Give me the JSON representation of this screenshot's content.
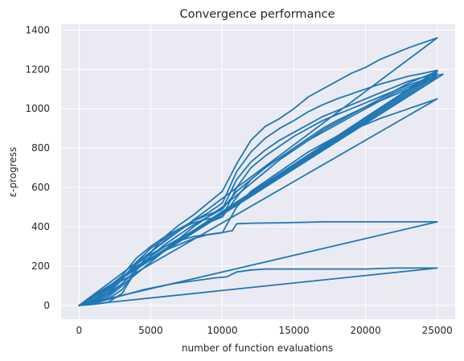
{
  "chart_data": {
    "type": "line",
    "title": "Convergence performance",
    "xlabel": "number of function evaluations",
    "ylabel": "ε-progress",
    "xlim": [
      -1250,
      26250
    ],
    "ylim": [
      -70,
      1430
    ],
    "xticks": [
      0,
      5000,
      10000,
      15000,
      20000,
      25000
    ],
    "yticks": [
      0,
      200,
      400,
      600,
      800,
      1000,
      1200,
      1400
    ],
    "grid": true,
    "legend": "none",
    "colors": {
      "series": "#1f77b4",
      "plot_background": "#eaeaf2",
      "grid": "#ffffff"
    },
    "series": [
      {
        "x": [
          0,
          1000,
          2000,
          3000,
          4000,
          5000,
          6000,
          7000,
          8000,
          9000,
          10000,
          11000,
          12000,
          13000,
          14000,
          15000,
          16000,
          17000,
          18000,
          19000,
          20000,
          21000,
          22000,
          23000,
          24000,
          25000,
          0
        ],
        "y": [
          0,
          5,
          15,
          60,
          180,
          270,
          350,
          410,
          460,
          520,
          580,
          720,
          840,
          910,
          950,
          1000,
          1060,
          1100,
          1140,
          1180,
          1210,
          1250,
          1280,
          1310,
          1335,
          1360,
          0
        ]
      },
      {
        "x": [
          0,
          500,
          1000,
          2000,
          3500,
          4500,
          5500,
          6500,
          7500,
          8500,
          9500,
          10300,
          11000,
          12000,
          13000,
          14000,
          16000,
          17000,
          20000,
          22000,
          25000,
          0
        ],
        "y": [
          0,
          10,
          10,
          30,
          60,
          80,
          95,
          110,
          120,
          130,
          140,
          145,
          170,
          180,
          185,
          185,
          185,
          185,
          185,
          190,
          190,
          0
        ]
      },
      {
        "x": [
          0,
          1000,
          2000,
          3000,
          4000,
          5000,
          6000,
          7000,
          8000,
          9000,
          10000,
          10700,
          11000,
          12000,
          14000,
          16000,
          17000,
          20000,
          23000,
          25000,
          0
        ],
        "y": [
          0,
          30,
          60,
          110,
          180,
          250,
          300,
          330,
          350,
          360,
          370,
          380,
          415,
          418,
          420,
          423,
          425,
          425,
          425,
          425,
          0
        ]
      },
      {
        "x": [
          0,
          1000,
          2000,
          3000,
          4000,
          5000,
          6000,
          7000,
          8000,
          9000,
          10000,
          11000,
          12000,
          13000,
          14000,
          15000,
          16000,
          17000,
          18000,
          19000,
          20000,
          21000,
          22000,
          23000,
          24000,
          25000,
          0
        ],
        "y": [
          0,
          10,
          30,
          80,
          180,
          270,
          330,
          380,
          430,
          470,
          520,
          680,
          780,
          850,
          900,
          940,
          985,
          1020,
          1050,
          1075,
          1100,
          1125,
          1145,
          1165,
          1180,
          1195,
          0
        ]
      },
      {
        "x": [
          0,
          1000,
          2000,
          3000,
          4000,
          5000,
          6000,
          7000,
          8000,
          9000,
          10000,
          11000,
          12000,
          13000,
          14000,
          15000,
          16000,
          17000,
          18000,
          19000,
          20000,
          21000,
          22000,
          23000,
          24000,
          25000,
          0
        ],
        "y": [
          0,
          20,
          60,
          130,
          220,
          290,
          340,
          390,
          430,
          460,
          490,
          640,
          730,
          790,
          840,
          880,
          920,
          960,
          990,
          1020,
          1050,
          1080,
          1110,
          1140,
          1160,
          1180,
          0
        ]
      },
      {
        "x": [
          0,
          1000,
          2000,
          3000,
          4000,
          5000,
          6000,
          7000,
          8000,
          9000,
          10000,
          11000,
          12000,
          13000,
          14000,
          15000,
          16000,
          17000,
          18000,
          19000,
          20000,
          21000,
          22000,
          23000,
          24000,
          25000,
          0
        ],
        "y": [
          0,
          40,
          90,
          150,
          240,
          300,
          350,
          390,
          420,
          440,
          450,
          600,
          700,
          760,
          810,
          860,
          900,
          940,
          970,
          1000,
          1030,
          1060,
          1090,
          1120,
          1145,
          1170,
          0
        ]
      },
      {
        "x": [
          0,
          1000,
          2000,
          3000,
          4000,
          5000,
          6000,
          7000,
          8000,
          9000,
          10000,
          11000,
          12000,
          13000,
          14000,
          15000,
          16000,
          17000,
          18000,
          19000,
          20000,
          21000,
          22000,
          23000,
          24000,
          25000,
          0
        ],
        "y": [
          0,
          25,
          70,
          140,
          210,
          260,
          300,
          340,
          380,
          420,
          450,
          550,
          640,
          700,
          750,
          800,
          850,
          900,
          940,
          975,
          1010,
          1040,
          1070,
          1100,
          1130,
          1160,
          0
        ]
      },
      {
        "x": [
          0,
          1000,
          2000,
          3000,
          4000,
          5000,
          6000,
          7000,
          8000,
          9000,
          10000,
          11000,
          12000,
          13000,
          14000,
          15000,
          16000,
          17000,
          18000,
          19000,
          20000,
          21000,
          22000,
          23000,
          24000,
          25000,
          25400,
          0
        ],
        "y": [
          0,
          15,
          50,
          110,
          180,
          250,
          310,
          360,
          410,
          450,
          490,
          580,
          640,
          700,
          750,
          790,
          840,
          880,
          920,
          960,
          1000,
          1040,
          1080,
          1110,
          1140,
          1170,
          1175,
          0
        ]
      },
      {
        "x": [
          0,
          1000,
          2000,
          3000,
          4000,
          5000,
          6000,
          7000,
          8000,
          9000,
          10000,
          11000,
          12000,
          13000,
          14000,
          15000,
          16000,
          17000,
          18000,
          19000,
          20000,
          21000,
          22000,
          23000,
          24000,
          25000,
          0
        ],
        "y": [
          0,
          30,
          80,
          140,
          200,
          240,
          280,
          310,
          340,
          360,
          370,
          500,
          580,
          630,
          680,
          730,
          780,
          820,
          860,
          890,
          920,
          950,
          975,
          1000,
          1025,
          1050,
          0
        ]
      },
      {
        "x": [
          0,
          1000,
          2000,
          3000,
          4000,
          5000,
          6000,
          7000,
          8000,
          9000,
          10000,
          11000,
          12000,
          13000,
          14000,
          15000,
          16000,
          17000,
          18000,
          19000,
          20000,
          21000,
          22000,
          23000,
          24000,
          25000,
          0
        ],
        "y": [
          0,
          10,
          40,
          100,
          160,
          220,
          280,
          340,
          400,
          450,
          500,
          560,
          620,
          680,
          740,
          790,
          840,
          890,
          930,
          970,
          1010,
          1050,
          1090,
          1130,
          1160,
          1190,
          0
        ]
      }
    ]
  }
}
